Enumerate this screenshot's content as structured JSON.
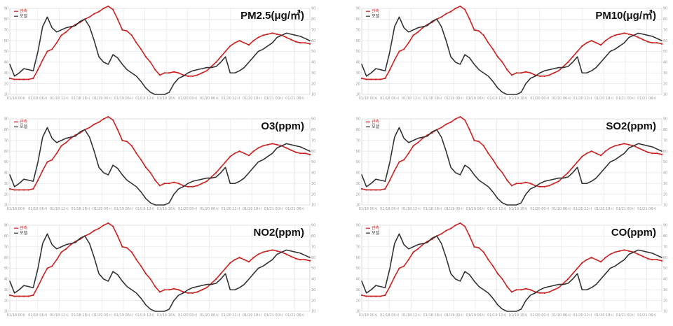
{
  "legend": {
    "observed": "관측",
    "model": "모델"
  },
  "colors": {
    "observed": "#cc2222",
    "model": "#333333",
    "grid": "#e6e6e6",
    "frame": "#cfcfcf"
  },
  "chart_data": [
    {
      "type": "line",
      "title": "PM2.5(μg/㎥)",
      "ylim": [
        10,
        90
      ],
      "x_ticks": [
        "01/18 00시",
        "01/18 06시",
        "01/18 12시",
        "01/18 18시",
        "01/19 00시",
        "01/19 06시",
        "01/19 12시",
        "01/19 18시",
        "01/20 00시",
        "01/20 06시",
        "01/20 12시",
        "01/20 18시",
        "01/21 00시",
        "01/21 06시"
      ],
      "y_ticks": [
        10,
        20,
        30,
        40,
        50,
        60,
        70,
        80,
        90
      ],
      "grid": true,
      "legend_position": "top-left",
      "series": [
        {
          "name": "관측",
          "key": "observed",
          "values": [
            25,
            24,
            24,
            24,
            24,
            25,
            33,
            42,
            50,
            52,
            58,
            65,
            68,
            72,
            75,
            77,
            80,
            82,
            85,
            87,
            90,
            92,
            89,
            80,
            70,
            69,
            65,
            58,
            52,
            45,
            40,
            33,
            28,
            30,
            30,
            31,
            30,
            28,
            27,
            27,
            28,
            30,
            32,
            36,
            40,
            45,
            50,
            55,
            58,
            60,
            58,
            56,
            60,
            63,
            65,
            66,
            67,
            66,
            65,
            63,
            61,
            59,
            58,
            58,
            57
          ]
        },
        {
          "name": "모델",
          "key": "model",
          "values": [
            38,
            27,
            30,
            34,
            33,
            32,
            50,
            73,
            82,
            72,
            68,
            70,
            72,
            73,
            74,
            78,
            80,
            73,
            60,
            45,
            40,
            38,
            47,
            44,
            38,
            33,
            30,
            27,
            22,
            16,
            12,
            10,
            10,
            10,
            12,
            20,
            25,
            27,
            30,
            32,
            33,
            34,
            35,
            35,
            36,
            40,
            45,
            30,
            30,
            32,
            35,
            40,
            45,
            50,
            52,
            55,
            58,
            63,
            65,
            67,
            66,
            65,
            64,
            62,
            60
          ]
        }
      ]
    },
    {
      "type": "line",
      "title": "PM10(μg/㎥)",
      "ylim": [
        10,
        90
      ],
      "x_ticks": [
        "01/18 00시",
        "01/18 06시",
        "01/18 12시",
        "01/18 18시",
        "01/19 00시",
        "01/19 06시",
        "01/19 12시",
        "01/19 18시",
        "01/20 00시",
        "01/20 06시",
        "01/20 12시",
        "01/20 18시",
        "01/21 00시",
        "01/21 06시"
      ],
      "y_ticks": [
        10,
        20,
        30,
        40,
        50,
        60,
        70,
        80,
        90
      ],
      "grid": true,
      "legend_position": "top-left",
      "series": [
        {
          "name": "관측",
          "key": "observed",
          "values": [
            25,
            24,
            24,
            24,
            24,
            25,
            33,
            42,
            50,
            52,
            58,
            65,
            68,
            72,
            75,
            77,
            80,
            82,
            85,
            87,
            90,
            92,
            89,
            80,
            70,
            69,
            65,
            58,
            52,
            45,
            40,
            33,
            28,
            30,
            30,
            31,
            30,
            28,
            27,
            27,
            28,
            30,
            32,
            36,
            40,
            45,
            50,
            55,
            58,
            60,
            58,
            56,
            60,
            63,
            65,
            66,
            67,
            66,
            65,
            63,
            61,
            59,
            58,
            58,
            57
          ]
        },
        {
          "name": "모델",
          "key": "model",
          "values": [
            38,
            27,
            30,
            34,
            33,
            32,
            50,
            73,
            82,
            72,
            68,
            70,
            72,
            73,
            74,
            78,
            80,
            73,
            60,
            45,
            40,
            38,
            47,
            44,
            38,
            33,
            30,
            27,
            22,
            16,
            12,
            10,
            10,
            10,
            12,
            20,
            25,
            27,
            30,
            32,
            33,
            34,
            35,
            35,
            36,
            40,
            45,
            30,
            30,
            32,
            35,
            40,
            45,
            50,
            52,
            55,
            58,
            63,
            65,
            67,
            66,
            65,
            64,
            62,
            60
          ]
        }
      ]
    },
    {
      "type": "line",
      "title": "O3(ppm)",
      "ylim": [
        10,
        90
      ],
      "x_ticks": [
        "01/18 00시",
        "01/18 06시",
        "01/18 12시",
        "01/18 18시",
        "01/19 00시",
        "01/19 06시",
        "01/19 12시",
        "01/19 18시",
        "01/20 00시",
        "01/20 06시",
        "01/20 12시",
        "01/20 18시",
        "01/21 00시",
        "01/21 06시"
      ],
      "y_ticks": [
        10,
        20,
        30,
        40,
        50,
        60,
        70,
        80,
        90
      ],
      "grid": true,
      "legend_position": "top-left",
      "series": [
        {
          "name": "관측",
          "key": "observed",
          "values": [
            25,
            24,
            24,
            24,
            24,
            25,
            33,
            42,
            50,
            52,
            58,
            65,
            68,
            72,
            75,
            77,
            80,
            82,
            85,
            87,
            90,
            92,
            89,
            80,
            70,
            69,
            65,
            58,
            52,
            45,
            40,
            33,
            28,
            30,
            30,
            31,
            30,
            28,
            27,
            27,
            28,
            30,
            32,
            36,
            40,
            45,
            50,
            55,
            58,
            60,
            58,
            56,
            60,
            63,
            65,
            66,
            67,
            66,
            65,
            63,
            61,
            59,
            58,
            58,
            57
          ]
        },
        {
          "name": "모델",
          "key": "model",
          "values": [
            38,
            27,
            30,
            34,
            33,
            32,
            50,
            73,
            82,
            72,
            68,
            70,
            72,
            73,
            74,
            78,
            80,
            73,
            60,
            45,
            40,
            38,
            47,
            44,
            38,
            33,
            30,
            27,
            22,
            16,
            12,
            10,
            10,
            10,
            12,
            20,
            25,
            27,
            30,
            32,
            33,
            34,
            35,
            35,
            36,
            40,
            45,
            30,
            30,
            32,
            35,
            40,
            45,
            50,
            52,
            55,
            58,
            63,
            65,
            67,
            66,
            65,
            64,
            62,
            60
          ]
        }
      ]
    },
    {
      "type": "line",
      "title": "SO2(ppm)",
      "ylim": [
        10,
        90
      ],
      "x_ticks": [
        "01/18 00시",
        "01/18 06시",
        "01/18 12시",
        "01/18 18시",
        "01/19 00시",
        "01/19 06시",
        "01/19 12시",
        "01/19 18시",
        "01/20 00시",
        "01/20 06시",
        "01/20 12시",
        "01/20 18시",
        "01/21 00시",
        "01/21 06시"
      ],
      "y_ticks": [
        10,
        20,
        30,
        40,
        50,
        60,
        70,
        80,
        90
      ],
      "grid": true,
      "legend_position": "top-left",
      "series": [
        {
          "name": "관측",
          "key": "observed",
          "values": [
            25,
            24,
            24,
            24,
            24,
            25,
            33,
            42,
            50,
            52,
            58,
            65,
            68,
            72,
            75,
            77,
            80,
            82,
            85,
            87,
            90,
            92,
            89,
            80,
            70,
            69,
            65,
            58,
            52,
            45,
            40,
            33,
            28,
            30,
            30,
            31,
            30,
            28,
            27,
            27,
            28,
            30,
            32,
            36,
            40,
            45,
            50,
            55,
            58,
            60,
            58,
            56,
            60,
            63,
            65,
            66,
            67,
            66,
            65,
            63,
            61,
            59,
            58,
            58,
            57
          ]
        },
        {
          "name": "모델",
          "key": "model",
          "values": [
            38,
            27,
            30,
            34,
            33,
            32,
            50,
            73,
            82,
            72,
            68,
            70,
            72,
            73,
            74,
            78,
            80,
            73,
            60,
            45,
            40,
            38,
            47,
            44,
            38,
            33,
            30,
            27,
            22,
            16,
            12,
            10,
            10,
            10,
            12,
            20,
            25,
            27,
            30,
            32,
            33,
            34,
            35,
            35,
            36,
            40,
            45,
            30,
            30,
            32,
            35,
            40,
            45,
            50,
            52,
            55,
            58,
            63,
            65,
            67,
            66,
            65,
            64,
            62,
            60
          ]
        }
      ]
    },
    {
      "type": "line",
      "title": "NO2(ppm)",
      "ylim": [
        10,
        90
      ],
      "x_ticks": [
        "01/18 00시",
        "01/18 06시",
        "01/18 12시",
        "01/18 18시",
        "01/19 00시",
        "01/19 06시",
        "01/19 12시",
        "01/19 18시",
        "01/20 00시",
        "01/20 06시",
        "01/20 12시",
        "01/20 18시",
        "01/21 00시",
        "01/21 06시"
      ],
      "y_ticks": [
        10,
        20,
        30,
        40,
        50,
        60,
        70,
        80,
        90
      ],
      "grid": true,
      "legend_position": "top-left",
      "series": [
        {
          "name": "관측",
          "key": "observed",
          "values": [
            25,
            24,
            24,
            24,
            24,
            25,
            33,
            42,
            50,
            52,
            58,
            65,
            68,
            72,
            75,
            77,
            80,
            82,
            85,
            87,
            90,
            92,
            89,
            80,
            70,
            69,
            65,
            58,
            52,
            45,
            40,
            33,
            28,
            30,
            30,
            31,
            30,
            28,
            27,
            27,
            28,
            30,
            32,
            36,
            40,
            45,
            50,
            55,
            58,
            60,
            58,
            56,
            60,
            63,
            65,
            66,
            67,
            66,
            65,
            63,
            61,
            59,
            58,
            58,
            57
          ]
        },
        {
          "name": "모델",
          "key": "model",
          "values": [
            38,
            27,
            30,
            34,
            33,
            32,
            50,
            73,
            82,
            72,
            68,
            70,
            72,
            73,
            74,
            78,
            80,
            73,
            60,
            45,
            40,
            38,
            47,
            44,
            38,
            33,
            30,
            27,
            22,
            16,
            12,
            10,
            10,
            10,
            12,
            20,
            25,
            27,
            30,
            32,
            33,
            34,
            35,
            35,
            36,
            40,
            45,
            30,
            30,
            32,
            35,
            40,
            45,
            50,
            52,
            55,
            58,
            63,
            65,
            67,
            66,
            65,
            64,
            62,
            60
          ]
        }
      ]
    },
    {
      "type": "line",
      "title": "CO(ppm)",
      "ylim": [
        10,
        90
      ],
      "x_ticks": [
        "01/18 00시",
        "01/18 06시",
        "01/18 12시",
        "01/18 18시",
        "01/19 00시",
        "01/19 06시",
        "01/19 12시",
        "01/19 18시",
        "01/20 00시",
        "01/20 06시",
        "01/20 12시",
        "01/20 18시",
        "01/21 00시",
        "01/21 06시"
      ],
      "y_ticks": [
        10,
        20,
        30,
        40,
        50,
        60,
        70,
        80,
        90
      ],
      "grid": true,
      "legend_position": "top-left",
      "series": [
        {
          "name": "관측",
          "key": "observed",
          "values": [
            25,
            24,
            24,
            24,
            24,
            25,
            33,
            42,
            50,
            52,
            58,
            65,
            68,
            72,
            75,
            77,
            80,
            82,
            85,
            87,
            90,
            92,
            89,
            80,
            70,
            69,
            65,
            58,
            52,
            45,
            40,
            33,
            28,
            30,
            30,
            31,
            30,
            28,
            27,
            27,
            28,
            30,
            32,
            36,
            40,
            45,
            50,
            55,
            58,
            60,
            58,
            56,
            60,
            63,
            65,
            66,
            67,
            66,
            65,
            63,
            61,
            59,
            58,
            58,
            57
          ]
        },
        {
          "name": "모델",
          "key": "model",
          "values": [
            38,
            27,
            30,
            34,
            33,
            32,
            50,
            73,
            82,
            72,
            68,
            70,
            72,
            73,
            74,
            78,
            80,
            73,
            60,
            45,
            40,
            38,
            47,
            44,
            38,
            33,
            30,
            27,
            22,
            16,
            12,
            10,
            10,
            10,
            12,
            20,
            25,
            27,
            30,
            32,
            33,
            34,
            35,
            35,
            36,
            40,
            45,
            30,
            30,
            32,
            35,
            40,
            45,
            50,
            52,
            55,
            58,
            63,
            65,
            67,
            66,
            65,
            64,
            62,
            60
          ]
        }
      ]
    }
  ]
}
